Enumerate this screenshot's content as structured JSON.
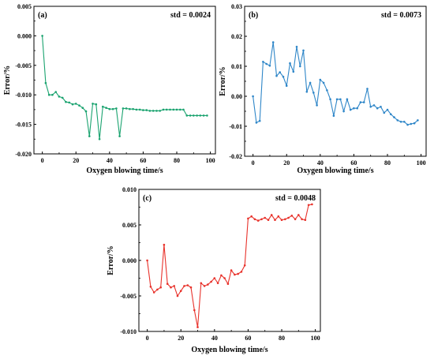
{
  "chart_data": [
    {
      "type": "line",
      "panel_label": "(a)",
      "std_text": "std = 0.0024",
      "xlabel": "Oxygen blowing time/s",
      "ylabel": "Error/%",
      "xlim": [
        -5,
        103
      ],
      "ylim": [
        -0.02,
        0.005
      ],
      "xticks": [
        0,
        20,
        40,
        60,
        80,
        100
      ],
      "xtick_labels": [
        "0",
        "20",
        "40",
        "60",
        "80",
        "100"
      ],
      "yticks": [
        0.005,
        0.0,
        -0.005,
        -0.01,
        -0.015,
        -0.02
      ],
      "ytick_labels": [
        "0.005",
        "0.000",
        "-0.005",
        "-0.010",
        "-0.015",
        "-0.020"
      ],
      "color": "#1aa36f",
      "series": [
        {
          "x": [
            0,
            2,
            4,
            6,
            8,
            10,
            12,
            14,
            16,
            18,
            20,
            22,
            24,
            26,
            28,
            30,
            32,
            34,
            36,
            38,
            40,
            42,
            44,
            46,
            48,
            50,
            52,
            54,
            56,
            58,
            60,
            62,
            64,
            66,
            68,
            70,
            72,
            74,
            76,
            78,
            80,
            82,
            84,
            86,
            88,
            90,
            92,
            94,
            96,
            98
          ],
          "values": [
            0.0,
            -0.008,
            -0.01,
            -0.01,
            -0.0095,
            -0.0103,
            -0.0105,
            -0.0112,
            -0.0113,
            -0.0116,
            -0.0115,
            -0.0118,
            -0.0122,
            -0.0128,
            -0.017,
            -0.0115,
            -0.0116,
            -0.0175,
            -0.012,
            -0.0122,
            -0.0124,
            -0.0124,
            -0.0123,
            -0.017,
            -0.0123,
            -0.0123,
            -0.0124,
            -0.0124,
            -0.0125,
            -0.0125,
            -0.0126,
            -0.0126,
            -0.0127,
            -0.0127,
            -0.0127,
            -0.0127,
            -0.0125,
            -0.0125,
            -0.0125,
            -0.0125,
            -0.0125,
            -0.0125,
            -0.0125,
            -0.0135,
            -0.0135,
            -0.0135,
            -0.0135,
            -0.0135,
            -0.0135,
            -0.0135
          ]
        }
      ]
    },
    {
      "type": "line",
      "panel_label": "(b)",
      "std_text": "std = 0.0073",
      "xlabel": "Oxygen blowing time/s",
      "ylabel": "Error/%",
      "xlim": [
        -5,
        103
      ],
      "ylim": [
        -0.02,
        0.03
      ],
      "xticks": [
        0,
        20,
        40,
        60,
        80,
        100
      ],
      "xtick_labels": [
        "0",
        "20",
        "40",
        "60",
        "80",
        "100"
      ],
      "yticks": [
        0.03,
        0.02,
        0.01,
        0.0,
        -0.01,
        -0.02
      ],
      "ytick_labels": [
        "0.03",
        "0.02",
        "0.01",
        "0.00",
        "-0.01",
        "-0.02"
      ],
      "color": "#2e86c8",
      "series": [
        {
          "x": [
            0,
            2,
            4,
            6,
            8,
            10,
            12,
            14,
            16,
            18,
            20,
            22,
            24,
            26,
            28,
            30,
            32,
            34,
            36,
            38,
            40,
            42,
            44,
            46,
            48,
            50,
            52,
            54,
            56,
            58,
            60,
            62,
            64,
            66,
            68,
            70,
            72,
            74,
            76,
            78,
            80,
            82,
            84,
            86,
            88,
            90,
            92,
            94,
            96,
            98
          ],
          "values": [
            0.0,
            -0.0088,
            -0.0082,
            0.0115,
            0.0108,
            0.0102,
            0.018,
            0.0068,
            0.008,
            0.0065,
            0.0035,
            0.011,
            0.0082,
            0.0165,
            0.01,
            0.0153,
            0.0015,
            0.0045,
            0.0012,
            -0.003,
            0.0055,
            0.0045,
            0.002,
            -0.001,
            -0.0065,
            -0.001,
            -0.001,
            -0.005,
            -0.001,
            -0.0045,
            -0.004,
            -0.004,
            -0.002,
            -0.002,
            0.0025,
            -0.0035,
            -0.003,
            -0.004,
            -0.0035,
            -0.0055,
            -0.0045,
            -0.006,
            -0.007,
            -0.008,
            -0.0085,
            -0.0085,
            -0.0095,
            -0.0092,
            -0.009,
            -0.008
          ]
        }
      ]
    },
    {
      "type": "line",
      "panel_label": "(c)",
      "std_text": "std = 0.0048",
      "xlabel": "Oxygen blowing time/s",
      "ylabel": "Error/%",
      "xlim": [
        -5,
        103
      ],
      "ylim": [
        -0.01,
        0.01
      ],
      "xticks": [
        0,
        20,
        40,
        60,
        80,
        100
      ],
      "xtick_labels": [
        "0",
        "20",
        "40",
        "60",
        "80",
        "100"
      ],
      "yticks": [
        0.01,
        0.005,
        0.0,
        -0.005,
        -0.01
      ],
      "ytick_labels": [
        "0.010",
        "0.005",
        "0.000",
        "-0.005",
        "-0.010"
      ],
      "color": "#e8322b",
      "series": [
        {
          "x": [
            0,
            2,
            4,
            6,
            8,
            10,
            12,
            14,
            16,
            18,
            20,
            22,
            24,
            26,
            28,
            30,
            32,
            34,
            36,
            38,
            40,
            42,
            44,
            46,
            48,
            50,
            52,
            54,
            56,
            58,
            60,
            62,
            64,
            66,
            68,
            70,
            72,
            74,
            76,
            78,
            80,
            82,
            84,
            86,
            88,
            90,
            92,
            94,
            96,
            98
          ],
          "values": [
            0.0,
            -0.0037,
            -0.0045,
            -0.0041,
            -0.0038,
            0.0022,
            -0.0033,
            -0.0038,
            -0.0036,
            -0.005,
            -0.0043,
            -0.0036,
            -0.0035,
            -0.0038,
            -0.007,
            -0.0094,
            -0.0032,
            -0.0036,
            -0.0034,
            -0.003,
            -0.0025,
            -0.0032,
            -0.0021,
            -0.0025,
            -0.0033,
            -0.0014,
            -0.002,
            -0.0019,
            -0.0016,
            -0.0007,
            0.0059,
            0.0062,
            0.0058,
            0.0056,
            0.0058,
            0.006,
            0.0057,
            0.0064,
            0.0057,
            0.0062,
            0.0057,
            0.0058,
            0.006,
            0.0063,
            0.0058,
            0.0064,
            0.0058,
            0.0057,
            0.0078,
            0.0079
          ]
        }
      ]
    }
  ]
}
